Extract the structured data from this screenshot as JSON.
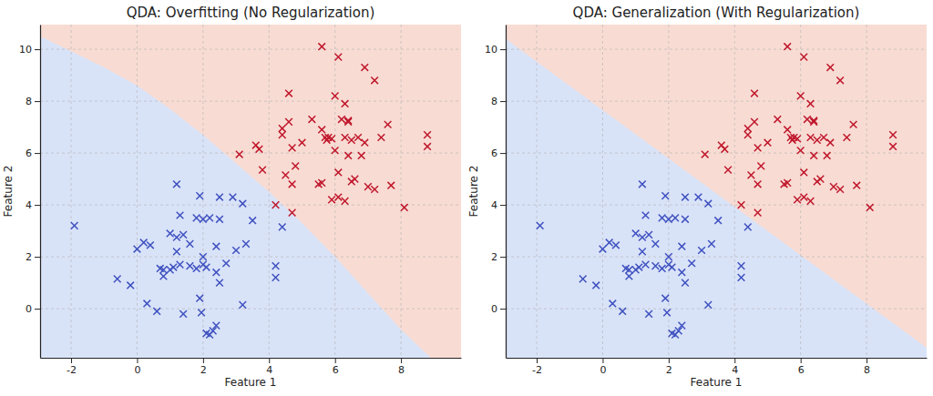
{
  "chart_data": [
    {
      "type": "scatter",
      "title": "QDA: Overfitting (No Regularization)",
      "x_label": "Feature 1",
      "y_label": "Feature 2",
      "xlim": [
        -2.94,
        9.82
      ],
      "ylim": [
        -1.89,
        10.95
      ],
      "xticks": [
        -2,
        0,
        2,
        4,
        6,
        8
      ],
      "yticks": [
        0,
        2,
        4,
        6,
        8,
        10
      ],
      "grid": true,
      "boundary": {
        "x": [
          -2.94,
          -1,
          0,
          1,
          2,
          3,
          4,
          5,
          6,
          7,
          8,
          8.9
        ],
        "y": [
          10.5,
          9.3,
          8.6,
          7.7,
          6.7,
          5.6,
          4.5,
          3.3,
          2.0,
          0.6,
          -0.8,
          -1.89
        ],
        "colors": [
          "#d9e3f8",
          "#f8dcd3"
        ]
      },
      "series": [
        {
          "color": "#3f51c0",
          "marker": "x",
          "x": [
            -1.9,
            -0.6,
            -0.2,
            0,
            0.2,
            0.4,
            0.3,
            0.6,
            0.7,
            0.8,
            0.8,
            1.0,
            1.0,
            1.1,
            1.2,
            1.2,
            1.2,
            1.3,
            1.3,
            1.4,
            1.4,
            1.6,
            1.6,
            1.8,
            1.8,
            1.9,
            1.9,
            1.95,
            2.0,
            2.0,
            2.0,
            2.1,
            2.1,
            2.2,
            2.2,
            2.3,
            2.4,
            2.4,
            2.5,
            2.5,
            2.5,
            2.4,
            2.7,
            2.9,
            3.0,
            3.2,
            3.2,
            3.3,
            3.5,
            4.2,
            4.2,
            4.4
          ],
          "values": [
            3.2,
            1.15,
            0.9,
            2.3,
            2.55,
            2.45,
            0.2,
            -0.1,
            1.55,
            1.25,
            1.5,
            1.5,
            2.9,
            1.6,
            4.8,
            2.2,
            2.75,
            3.6,
            1.7,
            2.85,
            -0.2,
            2.5,
            1.65,
            3.5,
            1.55,
            4.35,
            0.4,
            -0.15,
            1.7,
            3.45,
            2.0,
            1.6,
            -0.95,
            3.5,
            -1.0,
            -0.85,
            2.4,
            1.4,
            1.0,
            4.3,
            3.45,
            -0.65,
            1.75,
            4.3,
            2.25,
            0.15,
            4.05,
            2.5,
            3.4,
            1.65,
            1.2,
            3.15
          ]
        },
        {
          "color": "#c0172c",
          "marker": "x",
          "x": [
            3.1,
            3.6,
            3.7,
            3.8,
            4.2,
            4.4,
            4.4,
            4.5,
            4.6,
            4.6,
            4.7,
            4.7,
            4.7,
            4.8,
            5.0,
            5.3,
            5.5,
            5.6,
            5.6,
            5.6,
            5.7,
            5.75,
            5.8,
            5.9,
            5.9,
            6.0,
            6.0,
            6.1,
            6.1,
            6.1,
            6.2,
            6.3,
            6.3,
            6.3,
            6.4,
            6.4,
            6.4,
            6.5,
            6.5,
            6.6,
            6.7,
            6.8,
            6.9,
            6.9,
            7.0,
            7.2,
            7.2,
            7.4,
            7.6,
            7.7,
            8.1,
            8.8,
            8.8
          ],
          "values": [
            5.95,
            6.3,
            6.15,
            5.35,
            4.0,
            6.95,
            6.7,
            5.15,
            7.2,
            8.3,
            3.7,
            4.8,
            6.2,
            5.5,
            6.4,
            7.3,
            4.8,
            4.85,
            10.1,
            6.9,
            6.6,
            6.5,
            6.6,
            6.55,
            4.2,
            8.2,
            6.1,
            9.7,
            5.25,
            4.3,
            7.3,
            6.6,
            4.15,
            7.9,
            7.2,
            7.25,
            5.9,
            4.9,
            6.5,
            5.0,
            6.6,
            5.9,
            9.3,
            6.4,
            4.7,
            8.8,
            4.6,
            6.6,
            7.1,
            4.75,
            3.9,
            6.7,
            6.25
          ]
        }
      ]
    },
    {
      "type": "scatter",
      "title": "QDA: Generalization (With Regularization)",
      "x_label": "Feature 1",
      "y_label": "Feature 2",
      "xlim": [
        -2.94,
        9.82
      ],
      "ylim": [
        -1.89,
        10.95
      ],
      "xticks": [
        -2,
        0,
        2,
        4,
        6,
        8
      ],
      "yticks": [
        0,
        2,
        4,
        6,
        8,
        10
      ],
      "grid": true,
      "boundary": {
        "x": [
          -2.94,
          9.82
        ],
        "y": [
          10.4,
          -1.5
        ],
        "colors": [
          "#d9e3f8",
          "#f8dcd3"
        ]
      },
      "series": [
        {
          "color": "#3f51c0",
          "marker": "x",
          "x": [
            -1.9,
            -0.6,
            -0.2,
            0,
            0.2,
            0.4,
            0.3,
            0.6,
            0.7,
            0.8,
            0.8,
            1.0,
            1.0,
            1.1,
            1.2,
            1.2,
            1.2,
            1.3,
            1.3,
            1.4,
            1.4,
            1.6,
            1.6,
            1.8,
            1.8,
            1.9,
            1.9,
            1.95,
            2.0,
            2.0,
            2.0,
            2.1,
            2.1,
            2.2,
            2.2,
            2.3,
            2.4,
            2.4,
            2.5,
            2.5,
            2.5,
            2.4,
            2.7,
            2.9,
            3.0,
            3.2,
            3.2,
            3.3,
            3.5,
            4.2,
            4.2,
            4.4
          ],
          "values": [
            3.2,
            1.15,
            0.9,
            2.3,
            2.55,
            2.45,
            0.2,
            -0.1,
            1.55,
            1.25,
            1.5,
            1.5,
            2.9,
            1.6,
            4.8,
            2.2,
            2.75,
            3.6,
            1.7,
            2.85,
            -0.2,
            2.5,
            1.65,
            3.5,
            1.55,
            4.35,
            0.4,
            -0.15,
            1.7,
            3.45,
            2.0,
            1.6,
            -0.95,
            3.5,
            -1.0,
            -0.85,
            2.4,
            1.4,
            1.0,
            4.3,
            3.45,
            -0.65,
            1.75,
            4.3,
            2.25,
            0.15,
            4.05,
            2.5,
            3.4,
            1.65,
            1.2,
            3.15
          ]
        },
        {
          "color": "#c0172c",
          "marker": "x",
          "x": [
            3.1,
            3.6,
            3.7,
            3.8,
            4.2,
            4.4,
            4.4,
            4.5,
            4.6,
            4.6,
            4.7,
            4.7,
            4.7,
            4.8,
            5.0,
            5.3,
            5.5,
            5.6,
            5.6,
            5.6,
            5.7,
            5.75,
            5.8,
            5.9,
            5.9,
            6.0,
            6.0,
            6.1,
            6.1,
            6.1,
            6.2,
            6.3,
            6.3,
            6.3,
            6.4,
            6.4,
            6.4,
            6.5,
            6.5,
            6.6,
            6.7,
            6.8,
            6.9,
            6.9,
            7.0,
            7.2,
            7.2,
            7.4,
            7.6,
            7.7,
            8.1,
            8.8,
            8.8
          ],
          "values": [
            5.95,
            6.3,
            6.15,
            5.35,
            4.0,
            6.95,
            6.7,
            5.15,
            7.2,
            8.3,
            3.7,
            4.8,
            6.2,
            5.5,
            6.4,
            7.3,
            4.8,
            4.85,
            10.1,
            6.9,
            6.6,
            6.5,
            6.6,
            6.55,
            4.2,
            8.2,
            6.1,
            9.7,
            5.25,
            4.3,
            7.3,
            6.6,
            4.15,
            7.9,
            7.2,
            7.25,
            5.9,
            4.9,
            6.5,
            5.0,
            6.6,
            5.9,
            9.3,
            6.4,
            4.7,
            8.8,
            4.6,
            6.6,
            7.1,
            4.75,
            3.9,
            6.7,
            6.25
          ]
        }
      ]
    }
  ]
}
